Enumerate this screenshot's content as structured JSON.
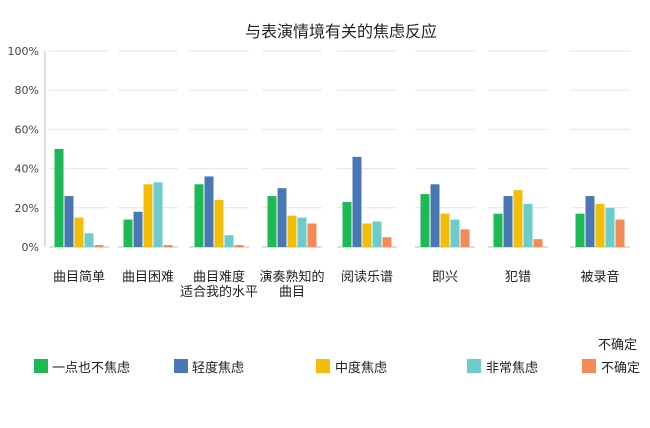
{
  "chart_data": {
    "type": "bar",
    "title": "与表演情境有关的焦虑反应",
    "xlabel": "",
    "ylabel": "",
    "ylim": [
      0,
      100
    ],
    "yticks": [
      "0%",
      "20%",
      "40%",
      "60%",
      "80%",
      "100%"
    ],
    "grid": true,
    "legend_position": "bottom",
    "categories": [
      [
        "曲目简单"
      ],
      [
        "曲目困难"
      ],
      [
        "曲目难度",
        "适合我的水平"
      ],
      [
        "演奏熟知的",
        "曲目"
      ],
      [
        "阅读乐谱"
      ],
      [
        "即兴"
      ],
      [
        "犯错"
      ],
      [
        "被录音"
      ]
    ],
    "series": [
      {
        "name": "一点也不焦虑",
        "color": "#1DB954",
        "values": [
          50,
          14,
          32,
          26,
          23,
          27,
          17,
          17
        ]
      },
      {
        "name": "轻度焦虑",
        "color": "#4A78B5",
        "values": [
          26,
          18,
          36,
          30,
          46,
          32,
          26,
          26
        ]
      },
      {
        "name": "中度焦虑",
        "color": "#F2BE0A",
        "values": [
          15,
          32,
          24,
          16,
          12,
          17,
          29,
          22
        ]
      },
      {
        "name": "非常焦虑",
        "color": "#6CCBCB",
        "values": [
          7,
          33,
          6,
          15,
          13,
          14,
          22,
          20
        ]
      },
      {
        "name": "不确定",
        "color": "#F58A58",
        "values": [
          1,
          1,
          1,
          12,
          5,
          9,
          4,
          14
        ]
      }
    ],
    "legend_extra_label": "不确定"
  }
}
